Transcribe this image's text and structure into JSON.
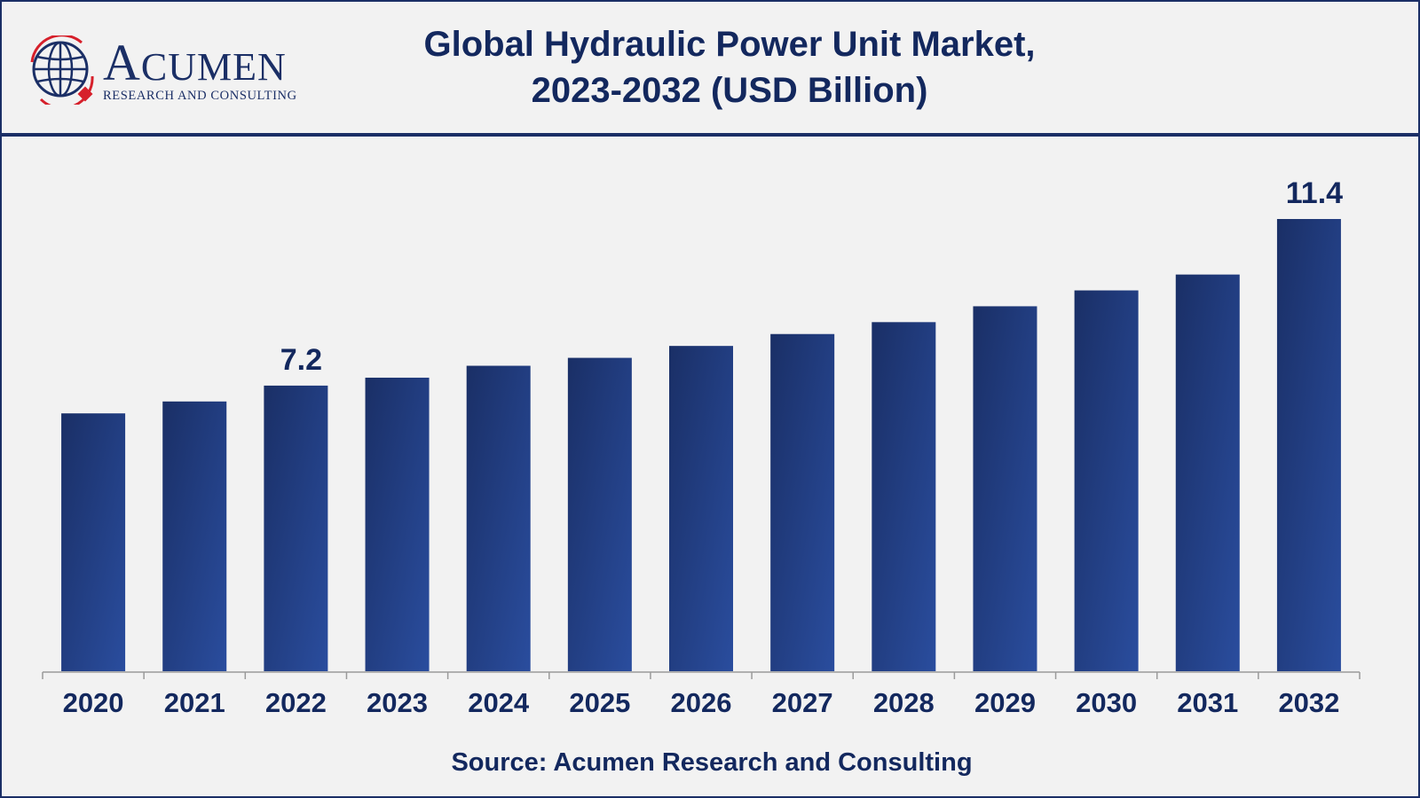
{
  "header": {
    "logo": {
      "wordmark_cap": "A",
      "wordmark_rest": "CUMEN",
      "subtitle": "RESEARCH AND CONSULTING",
      "globe_icon": "globe-icon"
    },
    "title_line1": "Global Hydraulic Power Unit Market,",
    "title_line2": "2023-2032 (USD Billion)"
  },
  "colors": {
    "brand_navy": "#1b2f66",
    "bar_dark": "#1a2f66",
    "bar_light": "#2a4d9e",
    "text_navy": "#13285e",
    "logo_red": "#d6202b"
  },
  "chart_data": {
    "type": "bar",
    "title": "Global Hydraulic Power Unit Market, 2023-2032 (USD Billion)",
    "xlabel": "",
    "ylabel": "",
    "categories": [
      "2020",
      "2021",
      "2022",
      "2023",
      "2024",
      "2025",
      "2026",
      "2027",
      "2028",
      "2029",
      "2030",
      "2031",
      "2032"
    ],
    "values": [
      6.5,
      6.8,
      7.2,
      7.4,
      7.7,
      7.9,
      8.2,
      8.5,
      8.8,
      9.2,
      9.6,
      10.0,
      11.4
    ],
    "data_labels": [
      {
        "category": "2022",
        "text": "7.2"
      },
      {
        "category": "2032",
        "text": "11.4"
      }
    ],
    "ylim": [
      0,
      11.4
    ],
    "grid": false,
    "legend": "none"
  },
  "source": "Source: Acumen Research and Consulting"
}
